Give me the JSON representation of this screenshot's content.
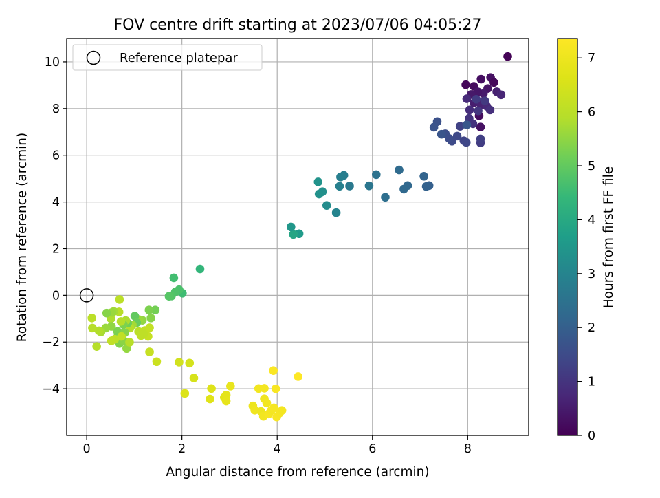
{
  "chart_data": {
    "type": "scatter",
    "title": "FOV centre drift starting at 2023/07/06 04:05:27",
    "xlabel": "Angular distance from reference (arcmin)",
    "ylabel": "Rotation from reference (arcmin)",
    "colorbar_label": "Hours from first FF file",
    "xlim": [
      -0.42,
      9.28
    ],
    "ylim": [
      -6.0,
      11.0
    ],
    "x_ticks": [
      0,
      2,
      4,
      6,
      8
    ],
    "y_ticks": [
      -4,
      -2,
      0,
      2,
      4,
      6,
      8,
      10
    ],
    "colorbar_ticks": [
      0,
      1,
      2,
      3,
      4,
      5,
      6,
      7
    ],
    "color_range": [
      0,
      7.36
    ],
    "colormap": "viridis",
    "grid": true,
    "legend": {
      "placement": "upper-left",
      "label": "Reference platepar"
    },
    "reference_point": {
      "x": 0,
      "y": 0
    },
    "points": [
      {
        "x": 8.84,
        "y": 10.23,
        "t": 0.05
      },
      {
        "x": 7.96,
        "y": 9.02,
        "t": 0.1
      },
      {
        "x": 8.13,
        "y": 8.95,
        "t": 0.2
      },
      {
        "x": 8.28,
        "y": 9.26,
        "t": 0.25
      },
      {
        "x": 8.48,
        "y": 9.33,
        "t": 0.3
      },
      {
        "x": 8.55,
        "y": 9.12,
        "t": 0.15
      },
      {
        "x": 8.42,
        "y": 8.86,
        "t": 0.35
      },
      {
        "x": 8.33,
        "y": 8.64,
        "t": 0.5
      },
      {
        "x": 8.61,
        "y": 8.72,
        "t": 0.6
      },
      {
        "x": 8.7,
        "y": 8.59,
        "t": 0.7
      },
      {
        "x": 8.21,
        "y": 8.72,
        "t": 0.4
      },
      {
        "x": 8.07,
        "y": 8.6,
        "t": 0.45
      },
      {
        "x": 8.13,
        "y": 8.24,
        "t": 0.55
      },
      {
        "x": 8.28,
        "y": 8.17,
        "t": 0.65
      },
      {
        "x": 8.4,
        "y": 8.1,
        "t": 0.75
      },
      {
        "x": 7.98,
        "y": 8.42,
        "t": 0.8
      },
      {
        "x": 8.04,
        "y": 7.94,
        "t": 0.85
      },
      {
        "x": 8.24,
        "y": 7.69,
        "t": 0.2
      },
      {
        "x": 8.47,
        "y": 7.94,
        "t": 0.9
      },
      {
        "x": 8.27,
        "y": 7.21,
        "t": 0.3
      },
      {
        "x": 8.11,
        "y": 7.35,
        "t": 0.95
      },
      {
        "x": 8.03,
        "y": 7.58,
        "t": 1.0
      },
      {
        "x": 8.22,
        "y": 7.9,
        "t": 1.05
      },
      {
        "x": 8.36,
        "y": 8.33,
        "t": 1.1
      },
      {
        "x": 8.18,
        "y": 8.4,
        "t": 1.15
      },
      {
        "x": 8.27,
        "y": 6.53,
        "t": 1.2
      },
      {
        "x": 8.27,
        "y": 6.7,
        "t": 1.25
      },
      {
        "x": 7.84,
        "y": 7.24,
        "t": 1.3
      },
      {
        "x": 7.92,
        "y": 6.62,
        "t": 1.35
      },
      {
        "x": 7.97,
        "y": 6.55,
        "t": 1.4
      },
      {
        "x": 7.78,
        "y": 6.82,
        "t": 1.45
      },
      {
        "x": 7.67,
        "y": 6.6,
        "t": 1.5
      },
      {
        "x": 7.61,
        "y": 6.72,
        "t": 1.55
      },
      {
        "x": 7.53,
        "y": 6.92,
        "t": 1.6
      },
      {
        "x": 7.36,
        "y": 7.44,
        "t": 1.65
      },
      {
        "x": 7.29,
        "y": 7.2,
        "t": 1.7
      },
      {
        "x": 7.45,
        "y": 6.9,
        "t": 1.75
      },
      {
        "x": 7.98,
        "y": 7.3,
        "t": 1.8
      },
      {
        "x": 7.19,
        "y": 4.7,
        "t": 2.0
      },
      {
        "x": 7.13,
        "y": 4.66,
        "t": 2.05
      },
      {
        "x": 7.08,
        "y": 5.1,
        "t": 2.1
      },
      {
        "x": 6.74,
        "y": 4.7,
        "t": 2.2
      },
      {
        "x": 6.66,
        "y": 4.55,
        "t": 2.25
      },
      {
        "x": 6.56,
        "y": 5.37,
        "t": 2.3
      },
      {
        "x": 6.27,
        "y": 4.2,
        "t": 2.4
      },
      {
        "x": 6.08,
        "y": 5.17,
        "t": 2.5
      },
      {
        "x": 5.93,
        "y": 4.69,
        "t": 2.6
      },
      {
        "x": 5.52,
        "y": 4.68,
        "t": 2.7
      },
      {
        "x": 5.4,
        "y": 5.14,
        "t": 2.8
      },
      {
        "x": 5.33,
        "y": 5.07,
        "t": 2.85
      },
      {
        "x": 5.31,
        "y": 4.67,
        "t": 2.9
      },
      {
        "x": 5.24,
        "y": 3.54,
        "t": 3.0
      },
      {
        "x": 5.04,
        "y": 3.85,
        "t": 3.2
      },
      {
        "x": 4.95,
        "y": 4.44,
        "t": 3.3
      },
      {
        "x": 4.88,
        "y": 4.34,
        "t": 3.35
      },
      {
        "x": 4.86,
        "y": 4.86,
        "t": 3.4
      },
      {
        "x": 4.46,
        "y": 2.64,
        "t": 3.6
      },
      {
        "x": 4.34,
        "y": 2.61,
        "t": 3.9
      },
      {
        "x": 4.29,
        "y": 2.93,
        "t": 3.5
      },
      {
        "x": 2.38,
        "y": 1.13,
        "t": 4.35
      },
      {
        "x": 2.01,
        "y": 0.09,
        "t": 4.55
      },
      {
        "x": 1.94,
        "y": 0.24,
        "t": 4.7
      },
      {
        "x": 1.86,
        "y": 0.14,
        "t": 4.75
      },
      {
        "x": 1.83,
        "y": 0.75,
        "t": 4.6
      },
      {
        "x": 1.78,
        "y": -0.03,
        "t": 4.8
      },
      {
        "x": 1.73,
        "y": -0.04,
        "t": 4.85
      },
      {
        "x": 1.44,
        "y": -0.63,
        "t": 5.2
      },
      {
        "x": 1.31,
        "y": -0.63,
        "t": 5.3
      },
      {
        "x": 1.35,
        "y": -0.97,
        "t": 5.4
      },
      {
        "x": 1.17,
        "y": -1.07,
        "t": 5.5
      },
      {
        "x": 1.1,
        "y": -1.04,
        "t": 5.6
      },
      {
        "x": 1.01,
        "y": -0.89,
        "t": 5.0
      },
      {
        "x": 1.05,
        "y": -1.17,
        "t": 5.1
      },
      {
        "x": 0.96,
        "y": -1.27,
        "t": 5.7
      },
      {
        "x": 0.91,
        "y": -1.4,
        "t": 5.9
      },
      {
        "x": 0.86,
        "y": -1.19,
        "t": 5.15
      },
      {
        "x": 0.82,
        "y": -1.08,
        "t": 5.8
      },
      {
        "x": 0.77,
        "y": -1.25,
        "t": 5.3
      },
      {
        "x": 0.72,
        "y": -1.12,
        "t": 5.9
      },
      {
        "x": 0.68,
        "y": -0.71,
        "t": 5.95
      },
      {
        "x": 0.69,
        "y": -0.18,
        "t": 6.0
      },
      {
        "x": 0.57,
        "y": -0.69,
        "t": 5.7
      },
      {
        "x": 0.51,
        "y": -1.0,
        "t": 5.8
      },
      {
        "x": 0.53,
        "y": -0.73,
        "t": 5.6
      },
      {
        "x": 0.42,
        "y": -0.76,
        "t": 5.4
      },
      {
        "x": 0.52,
        "y": -1.33,
        "t": 5.5
      },
      {
        "x": 0.4,
        "y": -1.4,
        "t": 5.6
      },
      {
        "x": 0.3,
        "y": -1.57,
        "t": 5.75
      },
      {
        "x": 0.26,
        "y": -1.52,
        "t": 5.85
      },
      {
        "x": 0.12,
        "y": -1.4,
        "t": 5.9
      },
      {
        "x": 0.11,
        "y": -0.97,
        "t": 6.0
      },
      {
        "x": 0.21,
        "y": -2.19,
        "t": 5.9
      },
      {
        "x": 0.65,
        "y": -1.55,
        "t": 5.3
      },
      {
        "x": 0.64,
        "y": -1.8,
        "t": 5.25
      },
      {
        "x": 0.69,
        "y": -2.06,
        "t": 5.35
      },
      {
        "x": 0.78,
        "y": -1.95,
        "t": 5.45
      },
      {
        "x": 0.8,
        "y": -1.6,
        "t": 5.4
      },
      {
        "x": 0.84,
        "y": -2.28,
        "t": 5.55
      },
      {
        "x": 0.9,
        "y": -2.01,
        "t": 5.95
      },
      {
        "x": 0.59,
        "y": -1.88,
        "t": 6.05
      },
      {
        "x": 0.52,
        "y": -1.95,
        "t": 6.1
      },
      {
        "x": 0.73,
        "y": -1.76,
        "t": 6.1
      },
      {
        "x": 1.09,
        "y": -1.55,
        "t": 6.0
      },
      {
        "x": 1.14,
        "y": -1.73,
        "t": 6.05
      },
      {
        "x": 1.22,
        "y": -1.51,
        "t": 6.1
      },
      {
        "x": 1.32,
        "y": -1.39,
        "t": 6.15
      },
      {
        "x": 1.29,
        "y": -1.76,
        "t": 6.2
      },
      {
        "x": 1.2,
        "y": -1.66,
        "t": 6.05
      },
      {
        "x": 1.32,
        "y": -2.42,
        "t": 6.2
      },
      {
        "x": 1.47,
        "y": -2.84,
        "t": 6.3
      },
      {
        "x": 1.94,
        "y": -2.86,
        "t": 6.4
      },
      {
        "x": 2.16,
        "y": -2.9,
        "t": 6.45
      },
      {
        "x": 2.25,
        "y": -3.54,
        "t": 6.5
      },
      {
        "x": 2.06,
        "y": -4.2,
        "t": 6.6
      },
      {
        "x": 2.62,
        "y": -3.99,
        "t": 6.65
      },
      {
        "x": 2.59,
        "y": -4.44,
        "t": 6.7
      },
      {
        "x": 2.89,
        "y": -4.37,
        "t": 6.75
      },
      {
        "x": 2.93,
        "y": -4.27,
        "t": 6.8
      },
      {
        "x": 2.93,
        "y": -4.53,
        "t": 6.85
      },
      {
        "x": 3.02,
        "y": -3.89,
        "t": 6.9
      },
      {
        "x": 3.49,
        "y": -4.74,
        "t": 7.0
      },
      {
        "x": 3.53,
        "y": -4.92,
        "t": 7.05
      },
      {
        "x": 3.61,
        "y": -3.99,
        "t": 7.1
      },
      {
        "x": 3.66,
        "y": -4.97,
        "t": 7.0
      },
      {
        "x": 3.71,
        "y": -5.18,
        "t": 7.1
      },
      {
        "x": 3.73,
        "y": -4.43,
        "t": 7.05
      },
      {
        "x": 3.73,
        "y": -3.98,
        "t": 7.15
      },
      {
        "x": 3.78,
        "y": -4.61,
        "t": 7.1
      },
      {
        "x": 3.82,
        "y": -5.08,
        "t": 7.2
      },
      {
        "x": 3.87,
        "y": -4.94,
        "t": 7.15
      },
      {
        "x": 3.93,
        "y": -4.82,
        "t": 7.2
      },
      {
        "x": 3.99,
        "y": -5.21,
        "t": 7.25
      },
      {
        "x": 4.05,
        "y": -5.04,
        "t": 7.2
      },
      {
        "x": 4.1,
        "y": -4.93,
        "t": 7.15
      },
      {
        "x": 3.92,
        "y": -3.22,
        "t": 7.3
      },
      {
        "x": 3.97,
        "y": -4.0,
        "t": 7.25
      },
      {
        "x": 4.44,
        "y": -3.48,
        "t": 7.36
      }
    ]
  }
}
